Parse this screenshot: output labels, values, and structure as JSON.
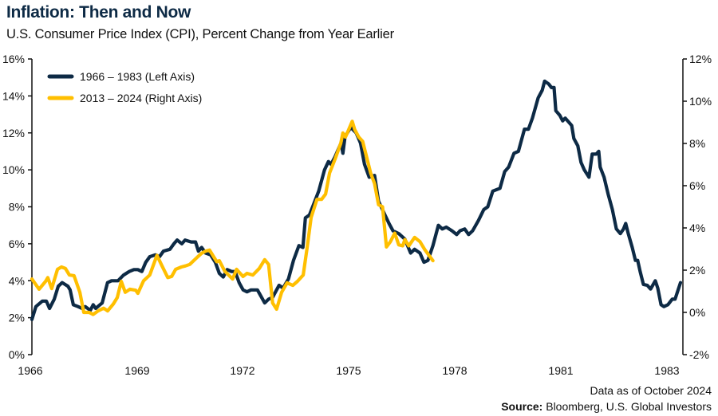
{
  "chart_data": {
    "type": "line",
    "title": "Inflation: Then and Now",
    "subtitle": "U.S. Consumer Price Index (CPI), Percent Change from Year Earlier",
    "xlim": [
      1966,
      1984
    ],
    "x_tick_labels": [
      "1966",
      "1969",
      "1972",
      "1975",
      "1978",
      "1981",
      "1983"
    ],
    "left_axis": {
      "ylim": [
        0,
        16
      ],
      "ticks": [
        0,
        2,
        4,
        6,
        8,
        10,
        12,
        14,
        16
      ],
      "tick_labels": [
        "0%",
        "2%",
        "4%",
        "6%",
        "8%",
        "10%",
        "12%",
        "14%",
        "16%"
      ]
    },
    "right_axis": {
      "ylim": [
        -2,
        12
      ],
      "ticks": [
        -2,
        0,
        2,
        4,
        6,
        8,
        10,
        12
      ],
      "tick_labels": [
        "-2%",
        "0%",
        "2%",
        "4%",
        "6%",
        "8%",
        "10%",
        "12%"
      ]
    },
    "grid": false,
    "legend_position": "top-left",
    "series": [
      {
        "name": "1966 – 1983 (Left Axis)",
        "axis": "left",
        "color": "#0d2a45",
        "x": [
          1966.0,
          1966.11,
          1966.29,
          1966.4,
          1966.49,
          1966.62,
          1966.73,
          1966.84,
          1967.0,
          1967.06,
          1967.15,
          1967.28,
          1967.39,
          1967.48,
          1967.62,
          1967.7,
          1967.77,
          1967.95,
          1968.1,
          1968.21,
          1968.39,
          1968.54,
          1968.7,
          1968.83,
          1968.94,
          1969.05,
          1969.16,
          1969.27,
          1969.43,
          1969.54,
          1969.65,
          1969.83,
          1969.94,
          1970.03,
          1970.16,
          1970.25,
          1970.42,
          1970.54,
          1970.62,
          1970.71,
          1970.82,
          1970.96,
          1971.09,
          1971.2,
          1971.31,
          1971.42,
          1971.54,
          1971.64,
          1971.75,
          1971.86,
          1971.97,
          1972.08,
          1972.26,
          1972.46,
          1972.57,
          1972.68,
          1972.86,
          1972.97,
          1973.12,
          1973.26,
          1973.41,
          1973.52,
          1973.59,
          1973.7,
          1973.81,
          1973.96,
          1974.12,
          1974.23,
          1974.3,
          1974.41,
          1974.58,
          1974.63,
          1974.69,
          1974.85,
          1975.0,
          1975.12,
          1975.23,
          1975.36,
          1975.51,
          1975.62,
          1975.8,
          1975.91,
          1976.02,
          1976.18,
          1976.35,
          1976.51,
          1976.62,
          1976.77,
          1976.88,
          1976.99,
          1977.13,
          1977.28,
          1977.39,
          1977.5,
          1977.66,
          1977.79,
          1977.88,
          1978.01,
          1978.12,
          1978.23,
          1978.39,
          1978.54,
          1978.65,
          1978.79,
          1978.99,
          1979.12,
          1979.23,
          1979.38,
          1979.5,
          1979.67,
          1979.78,
          1979.89,
          1980.05,
          1980.16,
          1980.23,
          1980.34,
          1980.42,
          1980.49,
          1980.54,
          1980.65,
          1980.73,
          1980.8,
          1980.89,
          1980.98,
          1981.04,
          1981.15,
          1981.24,
          1981.33,
          1981.46,
          1981.55,
          1981.66,
          1981.73,
          1981.77,
          1981.88,
          1981.99,
          1982.11,
          1982.22,
          1982.33,
          1982.42,
          1982.48,
          1982.55,
          1982.66,
          1982.75,
          1982.81,
          1982.88,
          1982.97,
          1983.08,
          1983.17,
          1983.3,
          1983.37,
          1983.46,
          1983.54,
          1983.65,
          1983.77,
          1983.85,
          1984.0
        ],
        "y": [
          1.9,
          2.6,
          2.9,
          2.9,
          2.5,
          3.0,
          3.7,
          3.9,
          3.7,
          3.5,
          2.7,
          2.6,
          2.5,
          2.6,
          2.4,
          2.7,
          2.5,
          2.8,
          3.9,
          4.0,
          4.0,
          4.3,
          4.5,
          4.6,
          4.6,
          4.5,
          5.0,
          5.3,
          5.4,
          5.3,
          5.6,
          5.7,
          6.0,
          6.2,
          6.0,
          6.2,
          6.1,
          6.1,
          5.6,
          5.8,
          5.5,
          5.4,
          5.0,
          4.4,
          4.2,
          4.6,
          4.5,
          4.5,
          3.9,
          3.5,
          3.4,
          3.5,
          3.5,
          2.8,
          3.0,
          3.1,
          3.75,
          3.6,
          4.1,
          5.1,
          5.9,
          5.8,
          7.4,
          7.55,
          8.1,
          8.85,
          10.0,
          10.45,
          10.3,
          10.7,
          11.45,
          10.9,
          11.8,
          12.3,
          12.0,
          11.45,
          10.3,
          9.6,
          9.7,
          8.3,
          7.55,
          7.1,
          6.7,
          6.55,
          6.25,
          5.5,
          5.7,
          5.5,
          5.0,
          5.1,
          5.9,
          7.0,
          6.8,
          6.9,
          6.7,
          6.5,
          6.7,
          6.8,
          6.5,
          6.7,
          7.25,
          7.85,
          8.0,
          8.85,
          9.0,
          9.9,
          10.15,
          10.9,
          11.0,
          12.2,
          12.2,
          12.8,
          13.9,
          14.3,
          14.8,
          14.65,
          14.45,
          14.45,
          13.2,
          12.95,
          12.65,
          12.8,
          12.6,
          12.4,
          11.7,
          11.3,
          10.4,
          10.0,
          9.6,
          10.85,
          10.85,
          11.0,
          10.15,
          9.6,
          8.7,
          7.85,
          6.8,
          6.55,
          6.8,
          7.1,
          6.55,
          5.8,
          5.1,
          5.1,
          4.5,
          3.8,
          3.75,
          3.55,
          4.0,
          3.6,
          2.7,
          2.6,
          2.7,
          3.0,
          3.0,
          3.9
        ]
      },
      {
        "name": "2013 – 2024 (Right Axis)",
        "axis": "right",
        "color": "#ffbf00",
        "x": [
          2013.55,
          2013.75,
          2013.93,
          2013.99,
          2014.1,
          2014.26,
          2014.37,
          2014.48,
          2014.59,
          2014.72,
          2014.88,
          2014.99,
          2015.14,
          2015.25,
          2015.39,
          2015.54,
          2015.65,
          2015.81,
          2015.92,
          2016.03,
          2016.14,
          2016.27,
          2016.43,
          2016.49,
          2016.65,
          2016.82,
          2017.02,
          2017.16,
          2017.32,
          2017.43,
          2017.54,
          2017.7,
          2017.81,
          2017.93,
          2018.13,
          2018.26,
          2018.37,
          2018.48,
          2018.57,
          2018.68,
          2018.75,
          2018.9,
          2019.01,
          2019.12,
          2019.23,
          2019.3,
          2019.41,
          2019.52,
          2019.68,
          2019.86,
          2020.01,
          2020.12,
          2020.23,
          2020.34,
          2020.48,
          2020.63,
          2020.79,
          2020.92,
          2021.08,
          2021.19,
          2021.3,
          2021.46,
          2021.59,
          2021.7,
          2021.81,
          2021.96,
          2022.12,
          2022.18,
          2022.25,
          2022.34,
          2022.44,
          2022.51,
          2022.62,
          2022.73,
          2022.84,
          2022.95,
          2023.06,
          2023.17,
          2023.28,
          2023.39,
          2023.5,
          2023.62,
          2023.73,
          2023.84,
          2023.9,
          2024.01,
          2024.17,
          2024.32,
          2024.45,
          2024.57,
          2024.68
        ],
        "y": [
          1.58,
          1.1,
          1.47,
          1.65,
          1.13,
          2.04,
          2.15,
          2.08,
          1.77,
          1.74,
          0.95,
          0.0,
          0.0,
          -0.1,
          0.07,
          0.2,
          0.07,
          0.4,
          0.7,
          1.47,
          0.95,
          1.1,
          1.05,
          0.9,
          1.5,
          1.77,
          2.7,
          2.2,
          1.65,
          1.7,
          2.04,
          2.15,
          2.2,
          2.27,
          2.6,
          2.8,
          2.9,
          2.95,
          2.7,
          2.4,
          2.45,
          1.96,
          1.77,
          1.58,
          2.04,
          1.9,
          1.7,
          1.85,
          1.77,
          2.08,
          2.5,
          2.27,
          0.45,
          0.15,
          0.95,
          1.4,
          1.28,
          1.47,
          1.77,
          3.1,
          4.5,
          5.35,
          5.35,
          5.6,
          6.6,
          7.25,
          8.0,
          8.5,
          8.3,
          8.65,
          9.05,
          8.65,
          8.3,
          8.1,
          7.35,
          6.6,
          6.1,
          5.1,
          5.0,
          3.1,
          3.35,
          3.75,
          3.2,
          3.15,
          3.45,
          3.15,
          3.55,
          3.35,
          2.98,
          2.7,
          2.45
        ]
      }
    ]
  },
  "footer": {
    "as_of": "Data as of October 2024",
    "source_label": "Source:",
    "source_text": " Bloomberg, U.S. Global Investors"
  }
}
